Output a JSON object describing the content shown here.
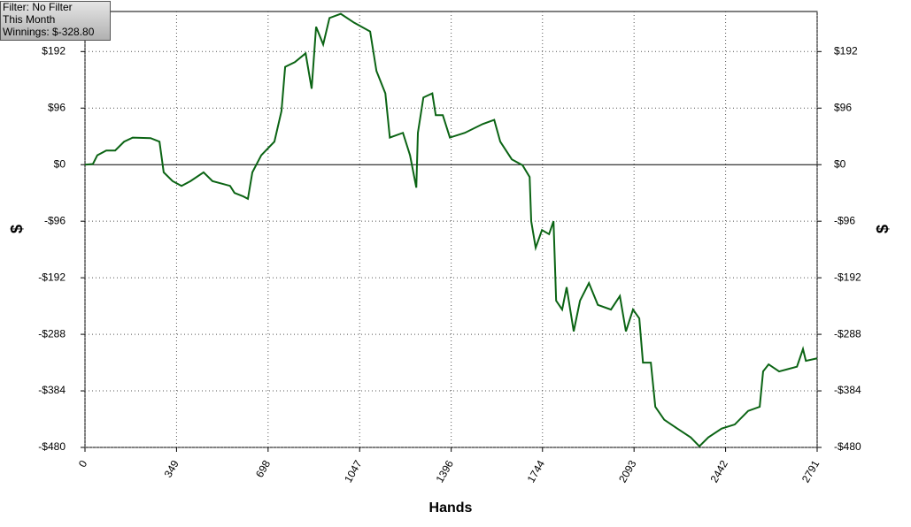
{
  "chart_data": {
    "type": "line",
    "info": [
      "Filter: No Filter",
      "This Month",
      "Winnings: $-328.80"
    ],
    "xlabel": "Hands",
    "ylabel": "$",
    "xlim": [
      0,
      2791
    ],
    "ylim": [
      -480,
      260
    ],
    "xticks": [
      0,
      349,
      698,
      1047,
      1396,
      1744,
      2093,
      2442,
      2791
    ],
    "yticks": [
      {
        "value": -480,
        "label": "-$480"
      },
      {
        "value": -384,
        "label": "-$384"
      },
      {
        "value": -288,
        "label": "-$288"
      },
      {
        "value": -192,
        "label": "-$192"
      },
      {
        "value": -96,
        "label": "-$96"
      },
      {
        "value": 0,
        "label": "$0"
      },
      {
        "value": 96,
        "label": "$96"
      },
      {
        "value": 192,
        "label": "$192"
      }
    ],
    "grid": true,
    "series": [
      {
        "color": "#0b6414",
        "x": [
          0,
          30,
          47,
          81,
          115,
          149,
          182,
          250,
          284,
          300,
          334,
          368,
          402,
          452,
          486,
          553,
          570,
          604,
          621,
          638,
          672,
          722,
          749,
          763,
          800,
          841,
          864,
          881,
          908,
          932,
          975,
          1026,
          1087,
          1111,
          1145,
          1162,
          1212,
          1239,
          1263,
          1269,
          1290,
          1324,
          1337,
          1364,
          1391,
          1448,
          1516,
          1560,
          1583,
          1627,
          1668,
          1695,
          1701,
          1718,
          1742,
          1769,
          1786,
          1796,
          1819,
          1836,
          1863,
          1887,
          1921,
          1955,
          2005,
          2039,
          2062,
          2089,
          2113,
          2127,
          2157,
          2174,
          2208,
          2258,
          2309,
          2342,
          2376,
          2427,
          2477,
          2528,
          2572,
          2585,
          2606,
          2646,
          2714,
          2737,
          2748,
          2791
        ],
        "values": [
          0,
          1,
          16,
          24,
          24,
          39,
          46,
          45,
          39,
          -13,
          -28,
          -36,
          -28,
          -13,
          -28,
          -36,
          -48,
          -54,
          -58,
          -13,
          16,
          39,
          91,
          166,
          174,
          189,
          129,
          234,
          204,
          249,
          256,
          241,
          226,
          159,
          121,
          46,
          54,
          16,
          -39,
          54,
          114,
          121,
          84,
          84,
          46,
          54,
          69,
          76,
          39,
          9,
          -1,
          -21,
          -96,
          -141,
          -111,
          -118,
          -96,
          -231,
          -246,
          -208,
          -283,
          -231,
          -201,
          -238,
          -246,
          -223,
          -283,
          -246,
          -261,
          -336,
          -336,
          -411,
          -433,
          -448,
          -463,
          -478,
          -463,
          -448,
          -441,
          -418,
          -411,
          -351,
          -339,
          -351,
          -343,
          -313,
          -333,
          -328.8
        ]
      }
    ]
  }
}
